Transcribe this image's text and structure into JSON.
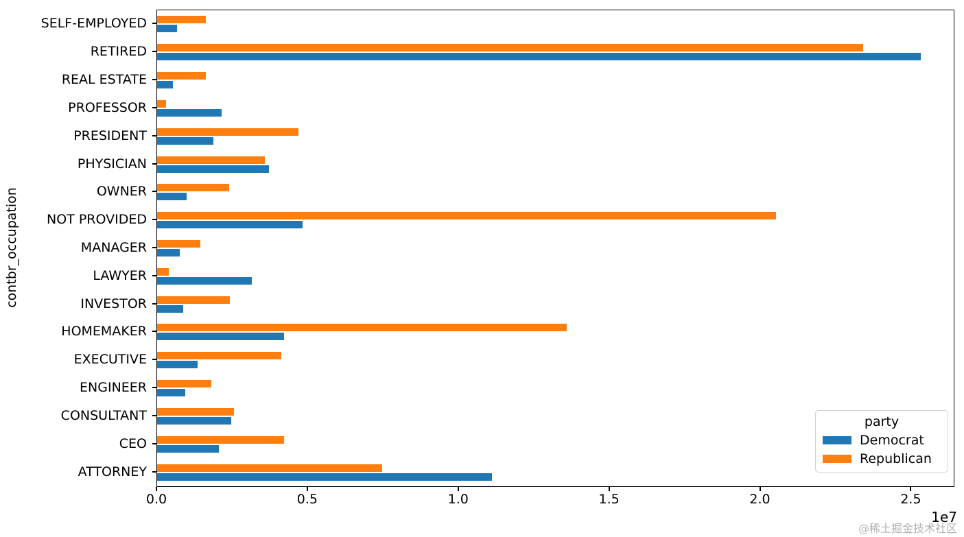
{
  "watermark": "@稀土掘金技术社区",
  "chart_data": {
    "type": "bar",
    "orientation": "horizontal",
    "title": "",
    "xlabel": "",
    "ylabel": "contbr_occupation",
    "x_offset_label": "1e7",
    "xlim": [
      0,
      26400000
    ],
    "x_ticks": [
      0,
      5000000,
      10000000,
      15000000,
      20000000,
      25000000
    ],
    "x_tick_labels": [
      "0.0",
      "0.5",
      "1.0",
      "1.5",
      "2.0",
      "2.5"
    ],
    "grid": false,
    "categories_top_to_bottom": [
      "SELF-EMPLOYED",
      "RETIRED",
      "REAL ESTATE",
      "PROFESSOR",
      "PRESIDENT",
      "PHYSICIAN",
      "OWNER",
      "NOT PROVIDED",
      "MANAGER",
      "LAWYER",
      "INVESTOR",
      "HOMEMAKER",
      "EXECUTIVE",
      "ENGINEER",
      "CONSULTANT",
      "CEO",
      "ATTORNEY"
    ],
    "series": [
      {
        "name": "Democrat",
        "color": "#1f77b4",
        "values": [
          660000,
          25300000,
          530000,
          2140000,
          1870000,
          3710000,
          980000,
          4830000,
          740000,
          3140000,
          870000,
          4210000,
          1340000,
          930000,
          2450000,
          2050000,
          11100000
        ]
      },
      {
        "name": "Republican",
        "color": "#ff7f0e",
        "values": [
          1620000,
          23400000,
          1610000,
          300000,
          4680000,
          3570000,
          2390000,
          20500000,
          1430000,
          380000,
          2410000,
          13570000,
          4120000,
          1800000,
          2550000,
          4210000,
          7460000
        ]
      }
    ],
    "legend": {
      "title": "party",
      "position": "lower right"
    }
  }
}
